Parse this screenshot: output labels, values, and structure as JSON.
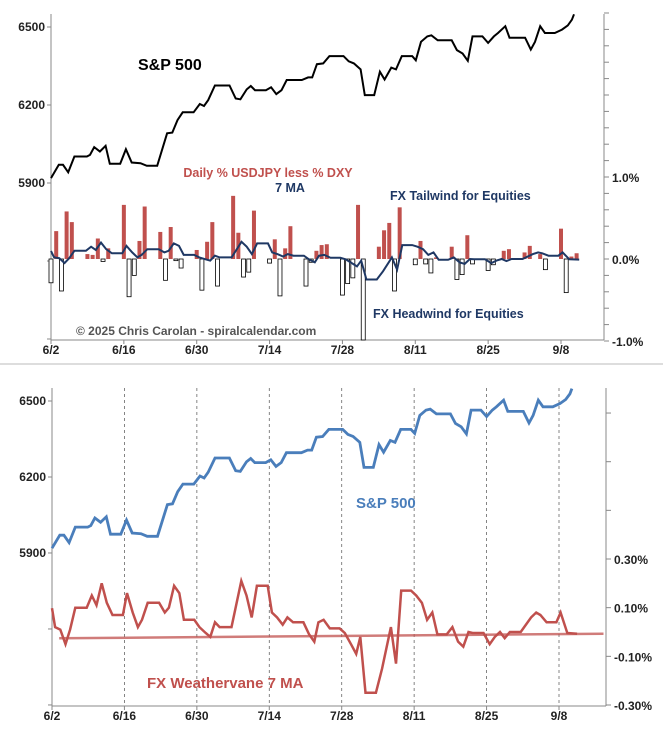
{
  "chart_data": {
    "type": "line",
    "x_tick_labels": [
      "6/2",
      "6/16",
      "6/30",
      "7/14",
      "7/28",
      "8/11",
      "8/25",
      "9/8"
    ],
    "x_tick_days": [
      0,
      14,
      28,
      42,
      56,
      70,
      84,
      98
    ],
    "series": {
      "sp500": {
        "name": "S&P 500",
        "x": [
          0,
          1.5,
          2.3,
          3.3,
          4.5,
          6.9,
          7.5,
          8.3,
          9.4,
          10.5,
          11.3,
          13.3,
          14.4,
          15.5,
          17.2,
          18.4,
          20.4,
          22.3,
          23.3,
          24.3,
          25.3,
          27.4,
          28.6,
          29.4,
          30.2,
          31.5,
          34.3,
          35.5,
          36.4,
          37.6,
          38.4,
          39.2,
          41.3,
          42.3,
          43.3,
          44.3,
          45.3,
          48.2,
          49.4,
          50.2,
          51.1,
          52.3,
          53.5,
          56.2,
          57.2,
          58.2,
          59.5,
          60.3,
          62.1,
          63.2,
          64.1,
          65.4,
          66.3,
          67.4,
          69.4,
          70.1,
          71.1,
          72.3,
          73.1,
          74.3,
          77,
          78,
          79.1,
          80.1,
          81,
          82.9,
          84,
          85.1,
          85.9,
          87.3,
          88.1,
          91.1,
          92.2,
          93,
          94,
          94.9,
          96.8,
          98.2,
          99.3,
          100.1,
          100.5
        ],
        "y": [
          5919,
          5970,
          5970,
          5941,
          6002,
          6002,
          6008,
          6038,
          6021,
          6043,
          5974,
          5974,
          6030,
          5979,
          5976,
          5966,
          5966,
          6091,
          6094,
          6142,
          6172,
          6172,
          6204,
          6196,
          6219,
          6275,
          6275,
          6225,
          6222,
          6260,
          6273,
          6257,
          6257,
          6268,
          6242,
          6257,
          6296,
          6296,
          6306,
          6306,
          6357,
          6360,
          6388,
          6388,
          6368,
          6360,
          6337,
          6238,
          6238,
          6328,
          6298,
          6344,
          6337,
          6388,
          6388,
          6372,
          6443,
          6464,
          6468,
          6449,
          6449,
          6411,
          6398,
          6370,
          6464,
          6464,
          6439,
          6464,
          6477,
          6503,
          6459,
          6459,
          6413,
          6443,
          6503,
          6477,
          6477,
          6490,
          6506,
          6528,
          6549
        ]
      },
      "fx_daily": {
        "name": "Daily % USDJPY less % DXY",
        "x": [
          0,
          1,
          2,
          3,
          4,
          7,
          8,
          9,
          10,
          11,
          14,
          15,
          16,
          17,
          18,
          21,
          22,
          23,
          24,
          25,
          28,
          29,
          30,
          31,
          32,
          35,
          36,
          37,
          38,
          39,
          42,
          43,
          44,
          45,
          46,
          49,
          50,
          51,
          52,
          53,
          56,
          57,
          58,
          59,
          60,
          63,
          64,
          65,
          66,
          67,
          70,
          71,
          72,
          73,
          74,
          77,
          78,
          79,
          80,
          81,
          84,
          85,
          87,
          88,
          91,
          92,
          94,
          95,
          98,
          99,
          100,
          101
        ],
        "y": [
          -0.29,
          0.34,
          -0.39,
          0.58,
          0.45,
          0.06,
          0.05,
          0.25,
          -0.03,
          0.13,
          0.66,
          -0.46,
          -0.2,
          0.22,
          0.64,
          0.33,
          -0.26,
          0.39,
          -0.02,
          -0.11,
          0.11,
          -0.38,
          0.21,
          0.45,
          -0.33,
          0.77,
          0.32,
          -0.22,
          -0.16,
          0.59,
          -0.05,
          0.24,
          -0.45,
          0.13,
          0.4,
          -0.33,
          -0.04,
          0.1,
          0.17,
          0.18,
          -0.44,
          -0.3,
          -0.23,
          0.66,
          -1.0,
          0.15,
          0.35,
          0.44,
          -0.39,
          0.63,
          -0.07,
          0.22,
          -0.06,
          -0.17,
          0.02,
          0.15,
          -0.25,
          -0.19,
          0.29,
          -0.06,
          -0.14,
          -0.07,
          0.1,
          0.12,
          0.08,
          0.16,
          0.06,
          -0.13,
          0.37,
          -0.41,
          0.03,
          0.07
        ]
      },
      "fx_7ma": {
        "name": "7 MA",
        "x": [
          0,
          0.6,
          1.6,
          2.6,
          3.5,
          4.5,
          6.7,
          7.7,
          8.6,
          9.6,
          10.6,
          11.7,
          13.7,
          14.5,
          15.6,
          16.6,
          17.4,
          18.5,
          20.7,
          21.8,
          22.6,
          23.6,
          24.6,
          25.5,
          27.5,
          28.5,
          29.7,
          30.6,
          31.5,
          32.4,
          34.7,
          36.6,
          37.6,
          38.6,
          39.6,
          41.7,
          42.5,
          43.5,
          44.6,
          45.5,
          46.6,
          48.6,
          49.7,
          50.7,
          51.5,
          52.5,
          53.7,
          55.6,
          56.6,
          57.8,
          58.8,
          59.6,
          60.6,
          62.6,
          63.8,
          65.5,
          66.5,
          67.5,
          69.4,
          70.4,
          71.5,
          72.5,
          73.5,
          74.5,
          76.3,
          77.4,
          78.5,
          79.5,
          80.5,
          81.3,
          83.4,
          84.6,
          85.6,
          86.6,
          87.5,
          88.5,
          90.6,
          92.6,
          93.6,
          94.4,
          95.6,
          97.5,
          98.3,
          99.6,
          101.5
        ],
        "y": [
          0.098,
          0.02,
          0.01,
          -0.05,
          0.01,
          0.1,
          0.1,
          0.15,
          0.11,
          0.2,
          0.12,
          0.07,
          0.07,
          0.16,
          0.08,
          0.02,
          0.05,
          0.12,
          0.12,
          0.08,
          0.1,
          0.19,
          0.16,
          0.05,
          0.05,
          0.02,
          -0.004,
          -0.02,
          0.04,
          0.02,
          0.02,
          0.21,
          0.15,
          0.06,
          0.19,
          0.19,
          0.08,
          0.06,
          0.03,
          0.06,
          0.04,
          0.04,
          -0.01,
          -0.04,
          0.04,
          0.05,
          0.015,
          0.015,
          -0.004,
          -0.05,
          -0.09,
          -0.02,
          -0.25,
          -0.25,
          -0.15,
          0.02,
          -0.13,
          0.17,
          0.17,
          0.15,
          0.12,
          0.05,
          0.08,
          -0.01,
          -0.01,
          0.02,
          -0.04,
          -0.06,
          0,
          -0.004,
          -0.004,
          -0.05,
          -0.02,
          0,
          -0.025,
          0,
          0,
          0.06,
          0.08,
          0.07,
          0.04,
          0.04,
          0.08,
          -0.004,
          -0.007
        ]
      },
      "fx_7ma_trend": {
        "x": [
          1.4,
          106.6
        ],
        "y": [
          -0.026,
          -0.007
        ]
      }
    },
    "panels": [
      {
        "left_axis": {
          "ylim": [
            5300,
            6550
          ],
          "tick_values": [
            6500,
            6200,
            5900,
            5600,
            5300
          ],
          "labels": [
            "6500",
            "6200",
            "5900"
          ]
        },
        "right_axis": {
          "ylim": [
            -1.0,
            3.0
          ],
          "labels": [
            "1.0%",
            "0.0%",
            "-1.0%"
          ],
          "label_values": [
            1.0,
            0.0,
            -1.0
          ]
        },
        "annotations": {
          "sp500": "S&P 500",
          "bars": "Daily % USDJPY less % DXY",
          "ma": "7 MA",
          "tailwind": "FX Tailwind for Equities",
          "headwind": "FX Headwind for Equities",
          "copyright": "© 2025 Chris Carolan - spiralcalendar.com"
        },
        "colors": {
          "sp500": "#000000",
          "bars_pos": "#c0504d",
          "bars_neg": "#ffffff",
          "ma": "#1f3864",
          "right_axis": "#c0504d"
        }
      },
      {
        "left_axis": {
          "ylim": [
            5300,
            6550
          ],
          "tick_values": [
            6500,
            6200,
            5900,
            5600,
            5300
          ],
          "labels": [
            "6500",
            "6200",
            "5900"
          ]
        },
        "right_axis": {
          "ylim": [
            -0.3,
            1.0
          ],
          "labels": [
            "0.30%",
            "0.10%",
            "-0.10%",
            "-0.30%"
          ],
          "label_values": [
            0.3,
            0.1,
            -0.1,
            -0.3
          ]
        },
        "annotations": {
          "sp500": "S&P 500",
          "ma": "FX Weathervane 7 MA"
        },
        "grid": "dashed vertical",
        "colors": {
          "sp500": "#4a7ebb",
          "ma": "#c0504d",
          "left_axis": "#4a7ebb",
          "right_axis": "#c0504d"
        }
      }
    ]
  }
}
